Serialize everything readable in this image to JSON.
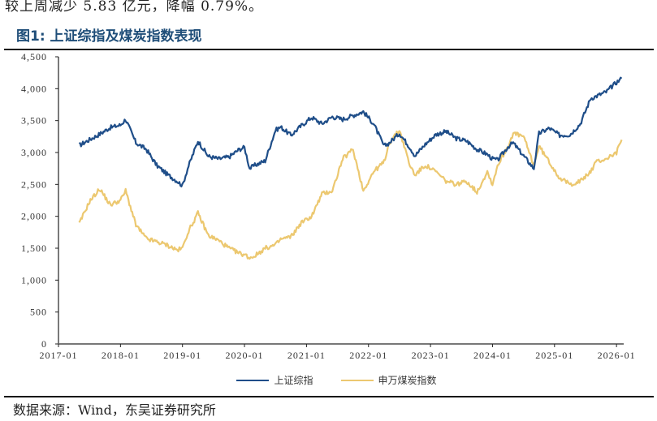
{
  "document": {
    "top_text": "较上周减少 5.83 亿元，降幅 0.79%。",
    "figure_title": "图1:  上证综指及煤炭指数表现",
    "source": "数据来源：Wind，东吴证券研究所"
  },
  "colors": {
    "sse": "#1f4e89",
    "coal": "#ecc870",
    "axis": "#222222",
    "x_axis": "#777777",
    "title": "#1f4e79"
  },
  "legend": [
    {
      "label": "上证综指",
      "color": "#1f4e89"
    },
    {
      "label": "申万煤炭指数",
      "color": "#ecc870"
    }
  ],
  "chart_data": {
    "type": "line",
    "title": "图1:  上证综指及煤炭指数表现",
    "xlabel": "",
    "ylabel": "",
    "ylim": [
      0,
      4500
    ],
    "yticks": [
      0,
      500,
      1000,
      1500,
      2000,
      2500,
      3000,
      3500,
      4000,
      4500
    ],
    "ytick_labels": [
      "0",
      "500",
      "1,000",
      "1,500",
      "2,000",
      "2,500",
      "3,000",
      "3,500",
      "4,000",
      "4,500"
    ],
    "xticks": [
      "2017-01",
      "2018-01",
      "2019-01",
      "2020-01",
      "2021-01",
      "2022-01",
      "2023-01",
      "2024-01",
      "2025-01",
      "2026-01"
    ],
    "grid": false,
    "legend_position": "bottom",
    "x": [
      "2017-05",
      "2017-07",
      "2017-09",
      "2017-11",
      "2018-01",
      "2018-02",
      "2018-04",
      "2018-06",
      "2018-08",
      "2018-10",
      "2018-12",
      "2019-01",
      "2019-02",
      "2019-04",
      "2019-06",
      "2019-08",
      "2019-10",
      "2019-12",
      "2020-01",
      "2020-02",
      "2020-03",
      "2020-05",
      "2020-07",
      "2020-08",
      "2020-10",
      "2020-12",
      "2021-02",
      "2021-04",
      "2021-06",
      "2021-08",
      "2021-10",
      "2021-12",
      "2022-02",
      "2022-04",
      "2022-05",
      "2022-07",
      "2022-09",
      "2022-10",
      "2022-12",
      "2023-02",
      "2023-04",
      "2023-06",
      "2023-08",
      "2023-10",
      "2023-12",
      "2024-01",
      "2024-02",
      "2024-04",
      "2024-05",
      "2024-07",
      "2024-09",
      "2024-10",
      "2024-12",
      "2025-02",
      "2025-04",
      "2025-06",
      "2025-08",
      "2025-09",
      "2025-11",
      "2026-01",
      "2026-02"
    ],
    "series": [
      {
        "name": "上证综指",
        "values": [
          3110,
          3200,
          3290,
          3390,
          3430,
          3520,
          3150,
          3050,
          2800,
          2660,
          2550,
          2480,
          2750,
          3180,
          2940,
          2900,
          2930,
          3050,
          3080,
          2750,
          2800,
          2870,
          3350,
          3400,
          3270,
          3420,
          3550,
          3450,
          3560,
          3520,
          3580,
          3640,
          3450,
          3100,
          3150,
          3300,
          3080,
          2950,
          3130,
          3280,
          3330,
          3220,
          3180,
          3050,
          2970,
          2900,
          2880,
          3090,
          3150,
          2950,
          2750,
          3300,
          3380,
          3270,
          3280,
          3450,
          3850,
          3880,
          3950,
          4100,
          4160
        ]
      },
      {
        "name": "申万煤炭指数",
        "values": [
          1880,
          2230,
          2430,
          2180,
          2250,
          2400,
          1860,
          1650,
          1600,
          1550,
          1470,
          1500,
          1740,
          2050,
          1700,
          1620,
          1500,
          1420,
          1400,
          1350,
          1380,
          1500,
          1550,
          1640,
          1680,
          1900,
          2000,
          2350,
          2400,
          2900,
          3050,
          2400,
          2700,
          2850,
          3150,
          3350,
          2800,
          2650,
          2800,
          2700,
          2550,
          2500,
          2550,
          2380,
          2700,
          2500,
          2800,
          3100,
          3300,
          3250,
          2800,
          3100,
          2850,
          2600,
          2500,
          2550,
          2700,
          2850,
          2900,
          3000,
          3200
        ]
      }
    ]
  }
}
